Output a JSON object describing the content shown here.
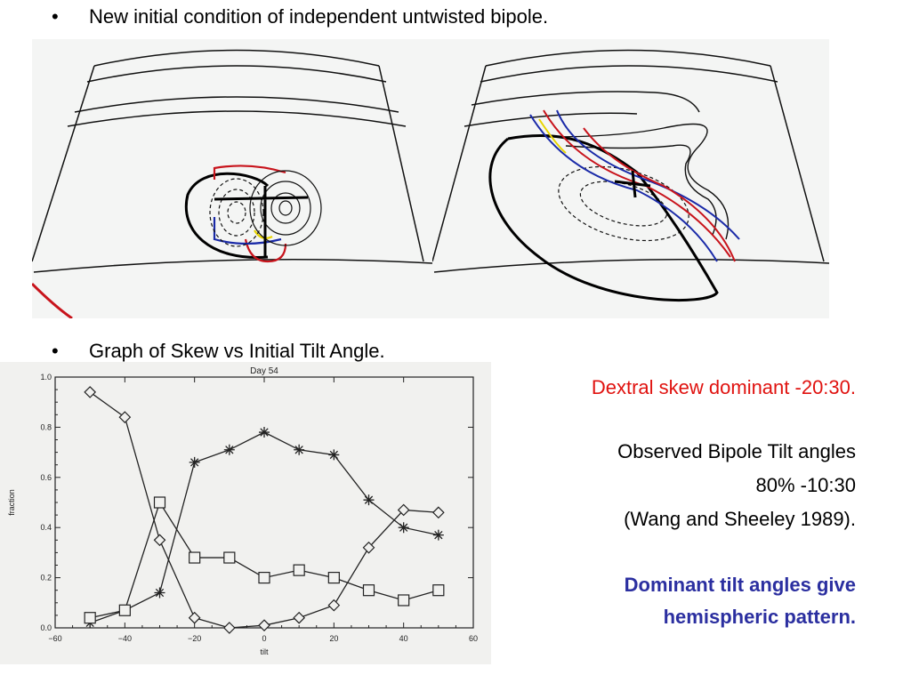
{
  "bullets": [
    {
      "marker": "•",
      "text": "New initial condition of independent untwisted bipole."
    },
    {
      "marker": "•",
      "text": "Graph of Skew vs Initial Tilt Angle."
    }
  ],
  "side_text": {
    "dextral": "Dextral skew dominant -20:30.",
    "observed_line1": "Observed Bipole Tilt angles",
    "observed_line2": "80% -10:30",
    "observed_line3": "(Wang and Sheeley 1989).",
    "dominant_line1": "Dominant tilt angles give",
    "dominant_line2": "hemispheric pattern."
  },
  "colors": {
    "red_text": "#e0120f",
    "blue_text": "#2b2fa0",
    "field_red": "#c8141c",
    "field_blue": "#1a2aa8",
    "field_yellow": "#e8d400"
  },
  "chart_data": {
    "type": "line",
    "title": "Day 54",
    "xlabel": "tilt",
    "ylabel": "fraction",
    "xlim": [
      -60,
      60
    ],
    "ylim": [
      0.0,
      1.0
    ],
    "xticks": [
      -60,
      -40,
      -20,
      0,
      20,
      40,
      60
    ],
    "yticks": [
      0.0,
      0.2,
      0.4,
      0.6,
      0.8,
      1.0
    ],
    "x": [
      -50,
      -40,
      -30,
      -20,
      -10,
      0,
      10,
      20,
      30,
      40,
      50
    ],
    "series": [
      {
        "marker": "diamond",
        "values": [
          0.94,
          0.84,
          0.35,
          0.04,
          0.0,
          0.01,
          0.04,
          0.09,
          0.32,
          0.47,
          0.46
        ]
      },
      {
        "marker": "asterisk",
        "values": [
          0.02,
          0.07,
          0.14,
          0.66,
          0.71,
          0.78,
          0.71,
          0.69,
          0.51,
          0.4,
          0.37
        ]
      },
      {
        "marker": "square",
        "values": [
          0.04,
          0.07,
          0.5,
          0.28,
          0.28,
          0.2,
          0.23,
          0.2,
          0.15,
          0.11,
          0.15
        ]
      }
    ]
  }
}
